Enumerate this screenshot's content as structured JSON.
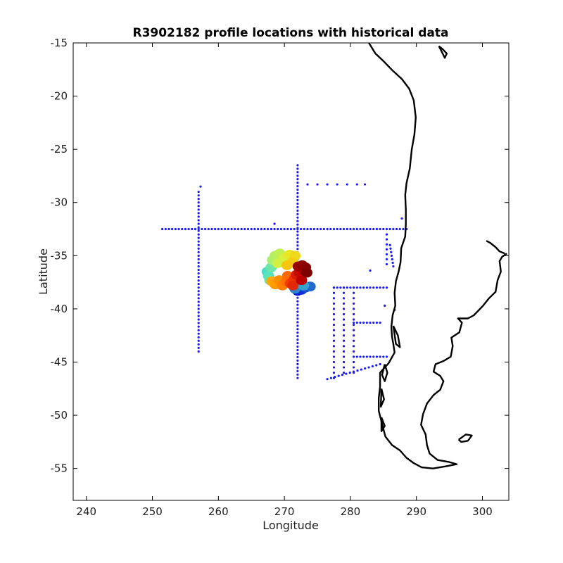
{
  "chart_data": {
    "type": "scatter",
    "title": "R3902182 profile locations with historical data",
    "xlabel": "Longitude",
    "ylabel": "Latitude",
    "xlim": [
      238,
      304
    ],
    "ylim": [
      -58,
      -15
    ],
    "x_ticks": [
      240,
      250,
      260,
      270,
      280,
      290,
      300
    ],
    "y_ticks": [
      -15,
      -20,
      -25,
      -30,
      -35,
      -40,
      -45,
      -50,
      -55
    ],
    "grid": false,
    "legend": "none",
    "colors": {
      "historical": "#1a1aff",
      "coastline": "#000000",
      "colormap": [
        "#0015d6",
        "#4fe0c8",
        "#9ef07a",
        "#e8f02a",
        "#ffb000",
        "#ff4a00",
        "#c00000",
        "#7a0000"
      ]
    },
    "series": [
      {
        "role": "historical",
        "segments": [
          {
            "from": [
              251.5,
              -32.5
            ],
            "to": [
              288.5,
              -32.5
            ],
            "step": 0.5
          },
          {
            "from": [
              257.0,
              -29.0
            ],
            "to": [
              257.0,
              -44.0
            ],
            "step": 0.33
          },
          {
            "from": [
              272.0,
              -26.5
            ],
            "to": [
              272.0,
              -46.5
            ],
            "step": 0.33
          },
          {
            "from": [
              277.5,
              -38.0
            ],
            "to": [
              285.5,
              -38.0
            ],
            "step": 0.5
          },
          {
            "from": [
              277.5,
              -38.0
            ],
            "to": [
              277.5,
              -46.5
            ],
            "step": 0.5
          },
          {
            "from": [
              279.0,
              -38.0
            ],
            "to": [
              279.0,
              -46.0
            ],
            "step": 0.5
          },
          {
            "from": [
              280.5,
              -38.0
            ],
            "to": [
              280.5,
              -46.0
            ],
            "step": 0.5
          },
          {
            "from": [
              280.5,
              -41.3
            ],
            "to": [
              284.5,
              -41.3
            ],
            "step": 0.5
          },
          {
            "from": [
              280.5,
              -44.5
            ],
            "to": [
              285.5,
              -44.5
            ],
            "step": 0.5
          },
          {
            "from": [
              276.5,
              -46.6
            ],
            "to": [
              284.5,
              -45.2
            ],
            "step": 0.6
          },
          {
            "from": [
              286.0,
              -34.0
            ],
            "to": [
              286.5,
              -36.0
            ],
            "step": 0.33
          },
          {
            "from": [
              285.5,
              -33.0
            ],
            "to": [
              285.5,
              -35.8
            ],
            "step": 0.5
          }
        ],
        "points": [
          [
            257.3,
            -28.5
          ],
          [
            268.5,
            -32.0
          ],
          [
            273.5,
            -28.3
          ],
          [
            275.0,
            -28.3
          ],
          [
            276.5,
            -28.3
          ],
          [
            278.0,
            -28.3
          ],
          [
            279.5,
            -28.3
          ],
          [
            281.0,
            -28.3
          ],
          [
            282.2,
            -28.3
          ],
          [
            283.0,
            -36.4
          ],
          [
            287.8,
            -31.5
          ],
          [
            285.2,
            -39.7
          ],
          [
            286.7,
            -40.1
          ]
        ]
      },
      {
        "role": "profiles",
        "points": [
          [
            272.0,
            -38.3,
            0.0
          ],
          [
            272.6,
            -38.2,
            0.02
          ],
          [
            273.2,
            -38.0,
            0.04
          ],
          [
            273.9,
            -37.9,
            0.06
          ],
          [
            271.6,
            -38.1,
            0.08
          ],
          [
            272.9,
            -37.8,
            0.1
          ],
          [
            267.4,
            -36.5,
            0.14
          ],
          [
            267.6,
            -36.9,
            0.16
          ],
          [
            267.8,
            -37.3,
            0.18
          ],
          [
            268.0,
            -36.1,
            0.2
          ],
          [
            268.2,
            -35.4,
            0.3
          ],
          [
            268.6,
            -35.0,
            0.33
          ],
          [
            269.3,
            -34.8,
            0.35
          ],
          [
            269.0,
            -35.7,
            0.38
          ],
          [
            270.0,
            -35.2,
            0.4
          ],
          [
            270.8,
            -34.9,
            0.45
          ],
          [
            271.6,
            -35.0,
            0.48
          ],
          [
            271.2,
            -35.6,
            0.5
          ],
          [
            270.4,
            -35.9,
            0.52
          ],
          [
            268.1,
            -37.4,
            0.58
          ],
          [
            268.6,
            -37.7,
            0.6
          ],
          [
            269.2,
            -37.3,
            0.62
          ],
          [
            269.7,
            -37.8,
            0.64
          ],
          [
            270.3,
            -37.4,
            0.66
          ],
          [
            270.5,
            -36.9,
            0.67
          ],
          [
            270.9,
            -37.6,
            0.74
          ],
          [
            271.5,
            -37.2,
            0.76
          ],
          [
            271.3,
            -37.8,
            0.78
          ],
          [
            271.8,
            -36.8,
            0.8
          ],
          [
            272.3,
            -36.6,
            0.84
          ],
          [
            272.6,
            -37.3,
            0.86
          ],
          [
            272.9,
            -36.4,
            0.88
          ],
          [
            272.1,
            -36.0,
            0.93
          ],
          [
            272.7,
            -35.9,
            0.95
          ],
          [
            273.2,
            -36.1,
            0.97
          ],
          [
            273.4,
            -36.6,
            0.99
          ]
        ]
      },
      {
        "role": "coastline",
        "paths": [
          [
            [
              282.8,
              -15.0
            ],
            [
              283.8,
              -16.0
            ],
            [
              285.0,
              -16.7
            ],
            [
              286.4,
              -17.6
            ],
            [
              287.8,
              -18.4
            ],
            [
              288.9,
              -19.3
            ],
            [
              289.6,
              -20.4
            ],
            [
              289.9,
              -22.0
            ],
            [
              289.7,
              -23.6
            ],
            [
              289.3,
              -25.0
            ],
            [
              289.0,
              -26.8
            ],
            [
              288.5,
              -28.2
            ],
            [
              288.3,
              -29.3
            ],
            [
              288.4,
              -30.7
            ],
            [
              288.4,
              -32.0
            ],
            [
              288.3,
              -33.2
            ],
            [
              287.7,
              -34.3
            ],
            [
              287.6,
              -35.6
            ],
            [
              287.3,
              -36.5
            ],
            [
              286.9,
              -37.4
            ],
            [
              286.7,
              -38.5
            ],
            [
              286.8,
              -39.7
            ],
            [
              286.4,
              -40.6
            ],
            [
              286.2,
              -41.7
            ],
            [
              286.3,
              -42.6
            ],
            [
              286.5,
              -43.3
            ],
            [
              286.7,
              -44.1
            ],
            [
              285.8,
              -45.1
            ],
            [
              284.5,
              -46.0
            ],
            [
              284.5,
              -47.3
            ],
            [
              284.3,
              -48.4
            ],
            [
              284.3,
              -49.6
            ],
            [
              284.8,
              -50.8
            ],
            [
              285.3,
              -52.0
            ],
            [
              286.3,
              -52.8
            ],
            [
              287.5,
              -53.3
            ],
            [
              288.5,
              -54.0
            ],
            [
              289.6,
              -54.5
            ],
            [
              290.8,
              -54.9
            ],
            [
              292.5,
              -55.0
            ],
            [
              294.5,
              -54.8
            ],
            [
              296.1,
              -54.6
            ],
            [
              295.0,
              -54.4
            ],
            [
              293.2,
              -54.2
            ],
            [
              292.0,
              -53.6
            ],
            [
              291.6,
              -52.8
            ],
            [
              291.4,
              -51.8
            ],
            [
              290.7,
              -50.9
            ],
            [
              291.0,
              -49.9
            ],
            [
              291.6,
              -48.9
            ],
            [
              292.6,
              -48.1
            ],
            [
              293.6,
              -47.6
            ],
            [
              294.1,
              -46.8
            ],
            [
              293.6,
              -46.3
            ],
            [
              292.6,
              -45.9
            ],
            [
              292.9,
              -45.2
            ],
            [
              294.1,
              -44.9
            ],
            [
              295.2,
              -44.5
            ],
            [
              295.5,
              -43.5
            ],
            [
              295.3,
              -42.7
            ],
            [
              296.5,
              -42.2
            ],
            [
              296.9,
              -41.3
            ],
            [
              296.3,
              -40.9
            ],
            [
              297.8,
              -40.9
            ],
            [
              298.7,
              -40.6
            ],
            [
              300.1,
              -39.7
            ],
            [
              301.0,
              -39.0
            ],
            [
              302.0,
              -38.4
            ],
            [
              302.3,
              -37.3
            ],
            [
              302.8,
              -36.5
            ],
            [
              302.6,
              -35.5
            ],
            [
              303.0,
              -35.1
            ],
            [
              303.7,
              -34.8
            ]
          ],
          [
            [
              300.6,
              -33.6
            ],
            [
              301.2,
              -33.8
            ],
            [
              302.0,
              -34.2
            ],
            [
              302.6,
              -34.6
            ],
            [
              303.4,
              -34.8
            ]
          ],
          [
            [
              293.4,
              -15.3
            ],
            [
              294.0,
              -15.6
            ],
            [
              294.6,
              -16.0
            ],
            [
              294.3,
              -16.4
            ],
            [
              293.9,
              -15.9
            ],
            [
              293.4,
              -15.3
            ]
          ],
          [
            [
              296.4,
              -52.3
            ],
            [
              297.5,
              -51.8
            ],
            [
              298.4,
              -51.9
            ],
            [
              297.8,
              -52.4
            ],
            [
              296.8,
              -52.5
            ],
            [
              296.4,
              -52.3
            ]
          ],
          [
            [
              285.2,
              -45.2
            ],
            [
              285.6,
              -46.0
            ],
            [
              285.2,
              -46.8
            ],
            [
              284.8,
              -46.2
            ],
            [
              285.2,
              -45.2
            ]
          ],
          [
            [
              284.7,
              -47.5
            ],
            [
              285.1,
              -48.5
            ],
            [
              284.6,
              -49.2
            ],
            [
              284.7,
              -47.5
            ]
          ],
          [
            [
              284.7,
              -50.2
            ],
            [
              285.2,
              -51.0
            ],
            [
              284.7,
              -51.5
            ],
            [
              284.7,
              -50.2
            ]
          ],
          [
            [
              286.5,
              -41.6
            ],
            [
              287.2,
              -42.5
            ],
            [
              287.5,
              -43.6
            ],
            [
              286.9,
              -43.3
            ],
            [
              286.5,
              -41.6
            ]
          ]
        ]
      }
    ]
  }
}
